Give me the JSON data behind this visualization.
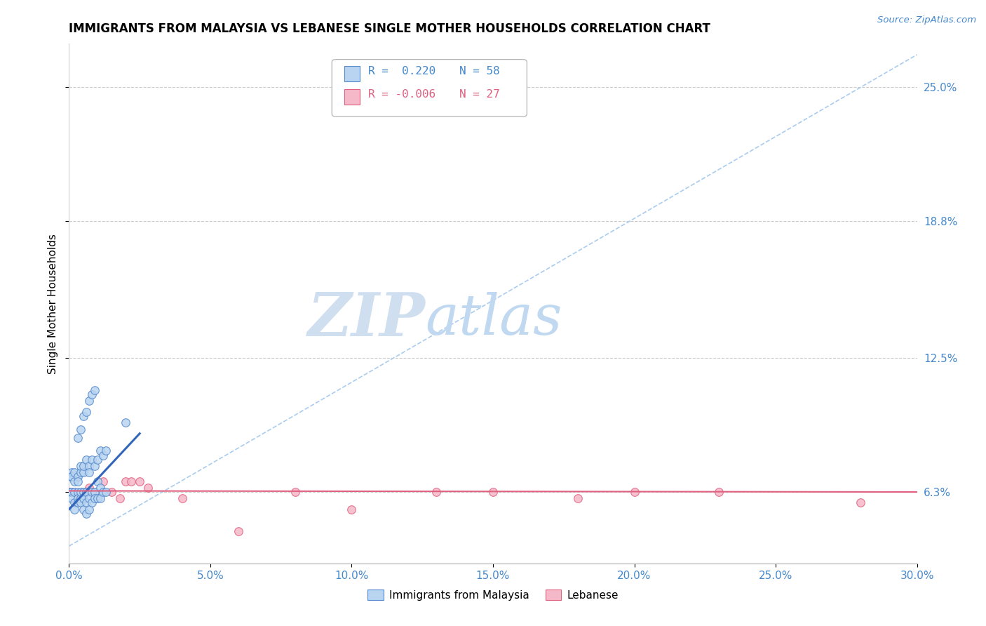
{
  "title": "IMMIGRANTS FROM MALAYSIA VS LEBANESE SINGLE MOTHER HOUSEHOLDS CORRELATION CHART",
  "source_text": "Source: ZipAtlas.com",
  "ylabel": "Single Mother Households",
  "series1": {
    "name": "Immigrants from Malaysia",
    "R": 0.22,
    "N": 58,
    "color": "#b8d4f0",
    "edge_color": "#5588cc",
    "x": [
      0.0005,
      0.001,
      0.001,
      0.002,
      0.002,
      0.002,
      0.003,
      0.003,
      0.003,
      0.004,
      0.004,
      0.004,
      0.005,
      0.005,
      0.005,
      0.006,
      0.006,
      0.006,
      0.007,
      0.007,
      0.008,
      0.008,
      0.009,
      0.009,
      0.01,
      0.01,
      0.011,
      0.011,
      0.012,
      0.013,
      0.0005,
      0.001,
      0.001,
      0.002,
      0.002,
      0.003,
      0.003,
      0.004,
      0.004,
      0.005,
      0.005,
      0.006,
      0.007,
      0.007,
      0.008,
      0.009,
      0.01,
      0.011,
      0.012,
      0.013,
      0.003,
      0.004,
      0.005,
      0.006,
      0.007,
      0.008,
      0.009,
      0.02
    ],
    "y": [
      0.063,
      0.063,
      0.06,
      0.063,
      0.058,
      0.055,
      0.063,
      0.06,
      0.058,
      0.06,
      0.063,
      0.058,
      0.063,
      0.06,
      0.055,
      0.063,
      0.058,
      0.053,
      0.06,
      0.055,
      0.063,
      0.058,
      0.063,
      0.06,
      0.068,
      0.06,
      0.065,
      0.06,
      0.063,
      0.063,
      0.07,
      0.072,
      0.07,
      0.068,
      0.072,
      0.07,
      0.068,
      0.072,
      0.075,
      0.072,
      0.075,
      0.078,
      0.075,
      0.072,
      0.078,
      0.075,
      0.078,
      0.082,
      0.08,
      0.082,
      0.088,
      0.092,
      0.098,
      0.1,
      0.105,
      0.108,
      0.11,
      0.095
    ]
  },
  "series2": {
    "name": "Lebanese",
    "R": -0.006,
    "N": 27,
    "color": "#f5b8c8",
    "edge_color": "#e06080",
    "x": [
      0.0005,
      0.001,
      0.002,
      0.003,
      0.004,
      0.005,
      0.006,
      0.007,
      0.008,
      0.009,
      0.012,
      0.015,
      0.018,
      0.02,
      0.022,
      0.025,
      0.028,
      0.04,
      0.06,
      0.08,
      0.1,
      0.13,
      0.15,
      0.18,
      0.2,
      0.23,
      0.28
    ],
    "y": [
      0.063,
      0.063,
      0.063,
      0.06,
      0.06,
      0.063,
      0.063,
      0.065,
      0.063,
      0.063,
      0.068,
      0.063,
      0.06,
      0.068,
      0.068,
      0.068,
      0.065,
      0.06,
      0.045,
      0.063,
      0.055,
      0.063,
      0.063,
      0.06,
      0.063,
      0.063,
      0.058
    ]
  },
  "trend1": {
    "x_start": 0.0,
    "x_end": 0.025,
    "y_start": 0.055,
    "y_end": 0.09,
    "color": "#3366bb",
    "linewidth": 2.2
  },
  "trend2": {
    "x_start": 0.0,
    "x_end": 0.3,
    "y_start": 0.0635,
    "y_end": 0.063,
    "color": "#e06080",
    "linewidth": 1.5
  },
  "background_trend_line": {
    "x_start": 0.0,
    "x_end": 0.3,
    "y_start": 0.038,
    "y_end": 0.265,
    "color": "#aaccee",
    "linewidth": 1.2,
    "linestyle": "--"
  },
  "xlim": [
    0.0,
    0.3
  ],
  "ylim": [
    0.03,
    0.27
  ],
  "yticks": [
    0.063,
    0.125,
    0.188,
    0.25
  ],
  "ytick_labels": [
    "6.3%",
    "12.5%",
    "18.8%",
    "25.0%"
  ],
  "xtick_values": [
    0.0,
    0.05,
    0.1,
    0.15,
    0.2,
    0.25,
    0.3
  ],
  "xtick_labels": [
    "0.0%",
    "5.0%",
    "10.0%",
    "15.0%",
    "20.0%",
    "25.0%",
    "30.0%"
  ],
  "grid_color": "#cccccc",
  "watermark_zip": "ZIP",
  "watermark_atlas": "atlas",
  "watermark_color_zip": "#d0dff0",
  "watermark_color_atlas": "#c0d8f0",
  "title_fontsize": 12,
  "axis_fontsize": 11,
  "tick_fontsize": 11,
  "legend_R1_text": "R =  0.220",
  "legend_N1_text": "N = 58",
  "legend_R2_text": "R = -0.006",
  "legend_N2_text": "N = 27",
  "legend_color1": "#4488cc",
  "legend_color2": "#e06080"
}
